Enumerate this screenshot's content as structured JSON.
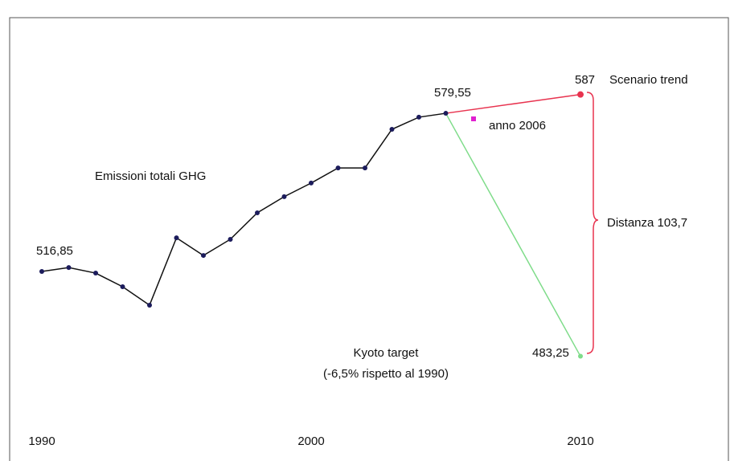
{
  "chart_data": {
    "type": "line",
    "xlim": [
      1990,
      2010
    ],
    "xticks": [
      1990,
      2000,
      2010
    ],
    "ylim": [
      450,
      620
    ],
    "series": [
      {
        "name": "Emissioni totali GHG",
        "color": "#1c1c5c",
        "x": [
          1990,
          1991,
          1992,
          1993,
          1994,
          1995,
          1996,
          1997,
          1998,
          1999,
          2000,
          2001,
          2002,
          2003,
          2004,
          2005
        ],
        "values": [
          516.85,
          518.4,
          516.2,
          510.8,
          503.5,
          530.2,
          523.2,
          529.6,
          540.1,
          546.5,
          551.9,
          557.9,
          557.9,
          573.2,
          578.0,
          579.55
        ],
        "value_labels": [
          "516,85",
          null,
          null,
          null,
          null,
          null,
          null,
          null,
          null,
          null,
          null,
          null,
          null,
          null,
          null,
          "579,55"
        ]
      },
      {
        "name": "Scenario trend",
        "color": "#e8334f",
        "x": [
          2005,
          2010
        ],
        "values": [
          579.55,
          587
        ],
        "value_labels": [
          null,
          "587"
        ]
      },
      {
        "name": "Kyoto target",
        "color": "#7fdc8a",
        "x": [
          2005,
          2010
        ],
        "values": [
          579.55,
          483.25
        ],
        "value_labels": [
          null,
          "483,25"
        ]
      }
    ],
    "annotations": {
      "kyoto_note": "(-6,5% rispetto al 1990)",
      "year_note": "anno 2006",
      "distance": "Distanza 103,7"
    }
  }
}
